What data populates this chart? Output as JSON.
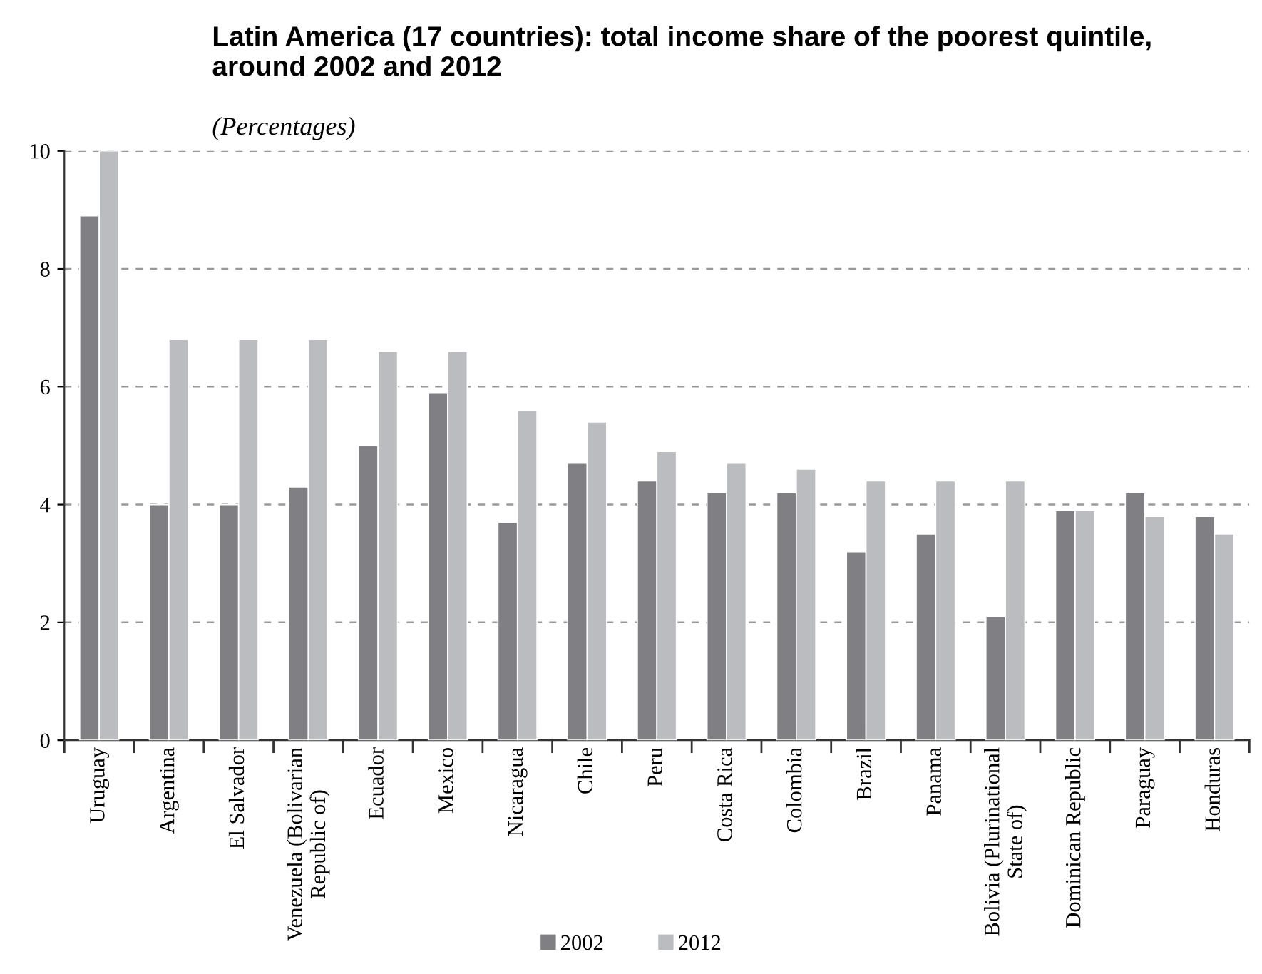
{
  "chart_data": {
    "type": "bar",
    "title": "Latin America (17 countries): total income share of the poorest quintile,\naround 2002 and 2012",
    "subtitle": "(Percentages)",
    "categories": [
      "Uruguay",
      "Argentina",
      "El Salvador",
      "Venezuela (Bolivarian\nRepublic of)",
      "Ecuador",
      "Mexico",
      "Nicaragua",
      "Chile",
      "Peru",
      "Costa Rica",
      "Colombia",
      "Brazil",
      "Panama",
      "Bolivia (Plurinational\nState of)",
      "Dominican Republic",
      "Paraguay",
      "Honduras"
    ],
    "series": [
      {
        "name": "2002",
        "color": "#808084",
        "values": [
          8.9,
          4.0,
          4.0,
          4.3,
          5.0,
          5.9,
          3.7,
          4.7,
          4.4,
          4.2,
          4.2,
          3.2,
          3.5,
          2.1,
          3.9,
          4.2,
          3.8
        ]
      },
      {
        "name": "2012",
        "color": "#bbbcc0",
        "values": [
          10.0,
          6.8,
          6.8,
          6.8,
          6.6,
          6.6,
          5.6,
          5.4,
          4.9,
          4.7,
          4.6,
          4.4,
          4.4,
          4.4,
          3.9,
          3.8,
          3.5
        ]
      }
    ],
    "ylim": [
      0,
      10
    ],
    "yticks": [
      0,
      2,
      4,
      6,
      8,
      10
    ],
    "grid": "y",
    "legend": "bottom"
  }
}
